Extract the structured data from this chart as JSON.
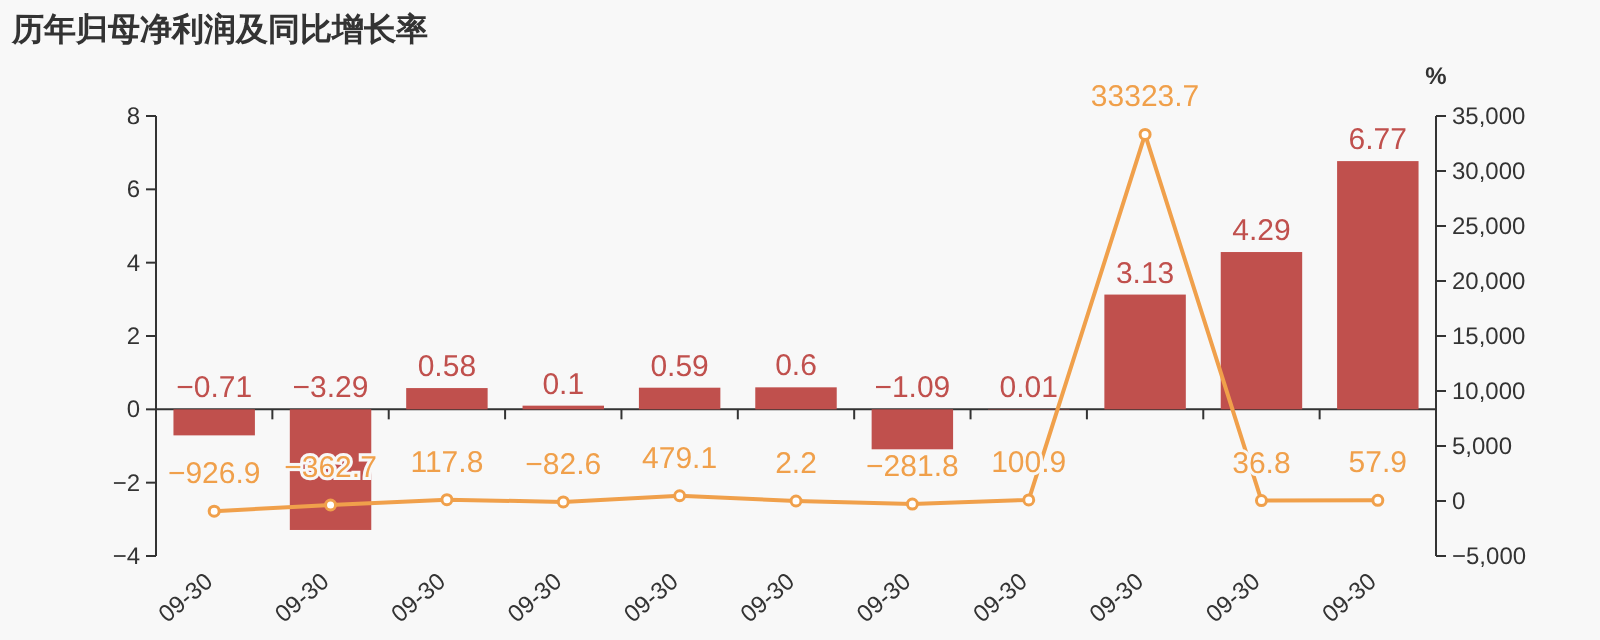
{
  "chart_data": {
    "type": "bar",
    "title": "历年归母净利润及同比增长率",
    "y2label": "%",
    "categories": [
      "09-30",
      "09-30",
      "09-30",
      "09-30",
      "09-30",
      "09-30",
      "09-30",
      "09-30",
      "09-30",
      "09-30",
      "09-30"
    ],
    "series": [
      {
        "color": "#c0504d",
        "values": [
          -0.71,
          -3.29,
          0.58,
          0.1,
          0.59,
          0.6,
          -1.09,
          0.01,
          3.13,
          4.29,
          6.77
        ]
      },
      {
        "type": "line",
        "axis": "y2",
        "color": "#f0a04b",
        "marker": "circle",
        "values": [
          -926.9,
          -362.7,
          117.8,
          -82.6,
          479.1,
          2.2,
          -281.8,
          100.9,
          33323.7,
          36.8,
          57.9
        ]
      }
    ],
    "ylim": [
      -4,
      8
    ],
    "yticks": [
      {
        "value": -4,
        "label": "−4"
      },
      {
        "value": -2,
        "label": "−2"
      },
      0,
      2,
      4,
      6,
      8
    ],
    "y2lim": [
      -5000,
      35000
    ],
    "y2ticks": [
      {
        "value": -5000,
        "label": "−5,000"
      },
      0,
      {
        "value": 5000,
        "label": "5,000"
      },
      {
        "value": 10000,
        "label": "10,000"
      },
      {
        "value": 15000,
        "label": "15,000"
      },
      {
        "value": 20000,
        "label": "20,000"
      },
      {
        "value": 25000,
        "label": "25,000"
      },
      {
        "value": 30000,
        "label": "30,000"
      },
      {
        "value": 35000,
        "label": "35,000"
      }
    ],
    "data_labels": true
  }
}
